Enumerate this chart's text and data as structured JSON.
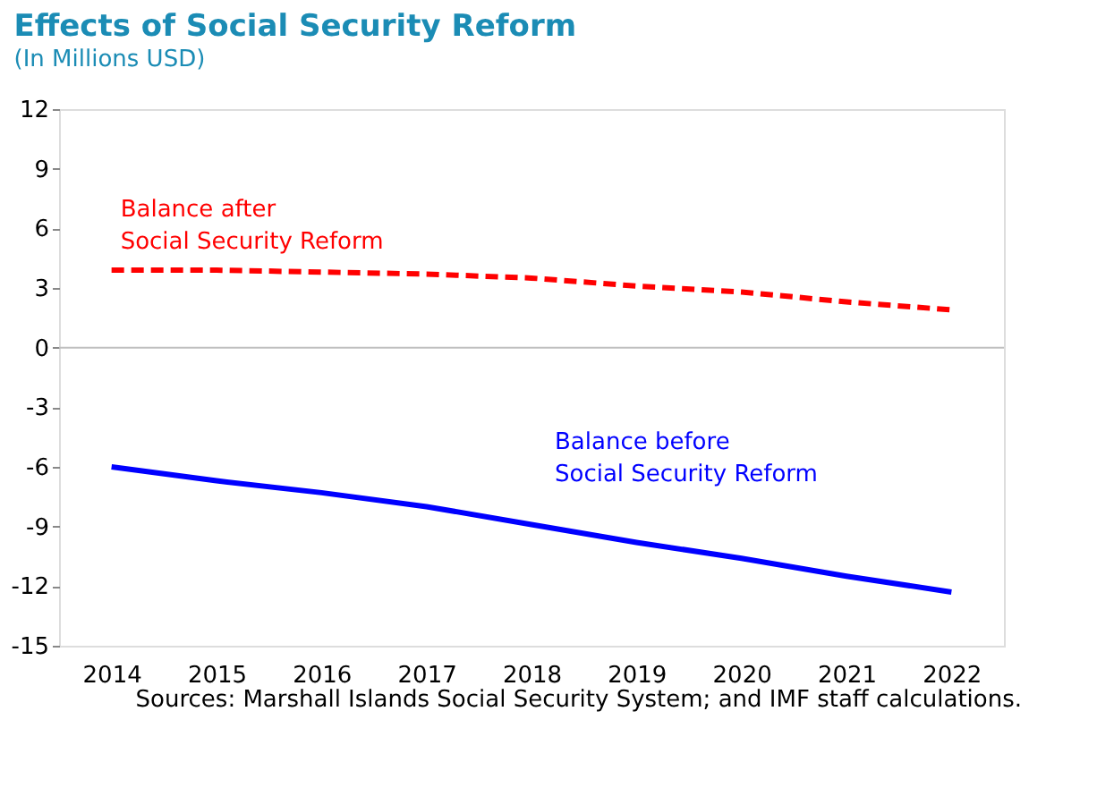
{
  "chart_data": {
    "type": "line",
    "title": "Effects of Social Security Reform",
    "subtitle": "(In Millions USD)",
    "categories": [
      "2014",
      "2015",
      "2016",
      "2017",
      "2018",
      "2019",
      "2020",
      "2021",
      "2022"
    ],
    "series": [
      {
        "name": "Balance after\nSocial Security Reform",
        "color": "#ff0000",
        "line_style": "dashed",
        "values": [
          3.9,
          3.9,
          3.8,
          3.7,
          3.5,
          3.1,
          2.8,
          2.3,
          1.9
        ]
      },
      {
        "name": "Balance before\nSocial Security Reform",
        "color": "#0000ff",
        "line_style": "solid",
        "values": [
          -6.0,
          -6.7,
          -7.3,
          -8.0,
          -8.9,
          -9.8,
          -10.6,
          -11.5,
          -12.3
        ]
      }
    ],
    "ylim": [
      -15,
      12
    ],
    "yticks": [
      -15,
      -12,
      -9,
      -6,
      -3,
      0,
      3,
      6,
      9,
      12
    ],
    "grid": false,
    "legend": false,
    "marker": "none",
    "ref_lines": [
      {
        "axis": "y",
        "value": 0,
        "color": "#bfbfbf"
      }
    ],
    "annotations": [
      "Sources:  Marshall Islands Social Security System; and IMF staff calculations."
    ]
  }
}
